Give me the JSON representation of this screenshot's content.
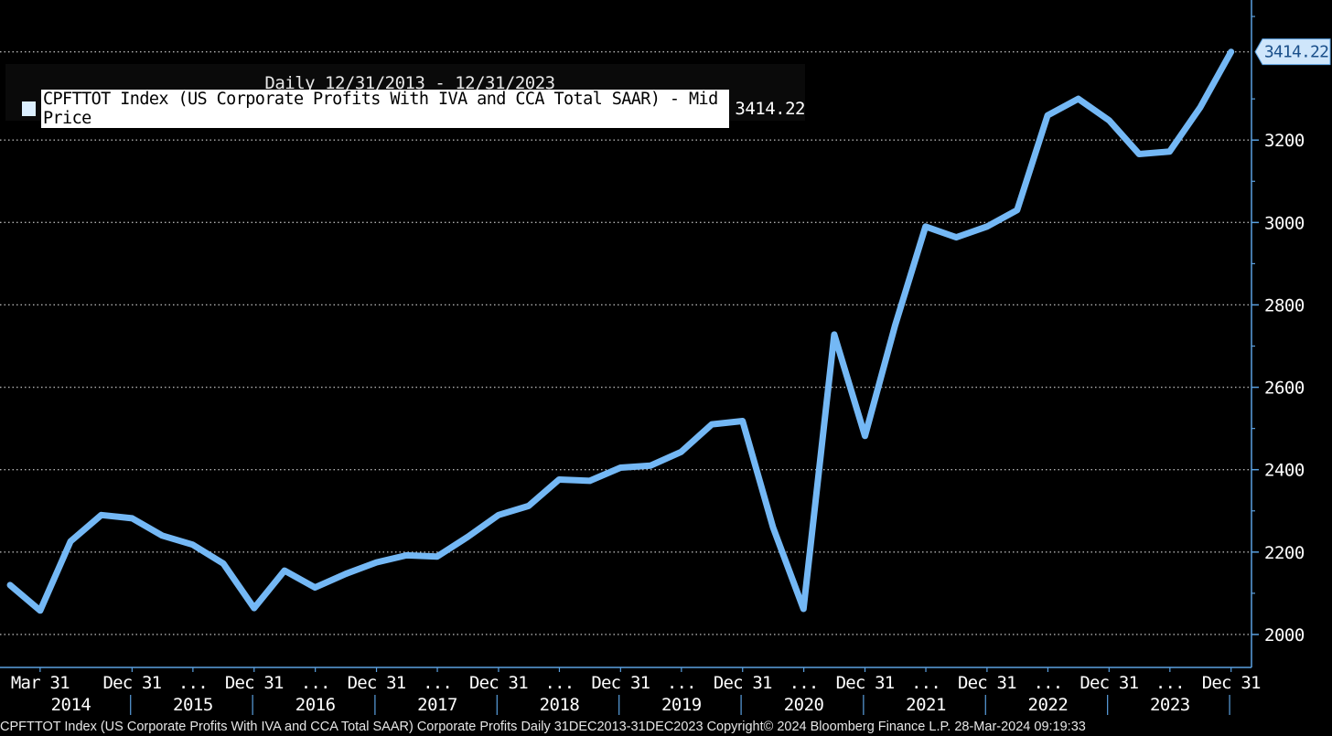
{
  "legend": {
    "range": "Daily 12/31/2013 - 12/31/2023",
    "series_name": "CPFTTOT Index (US Corporate Profits With IVA and CCA Total SAAR) - Mid Price",
    "last_value": "3414.22"
  },
  "footer": "CPFTTOT Index (US Corporate Profits With IVA and CCA Total SAAR) Corporate Profits  Daily 31DEC2013-31DEC2023  Copyright© 2024 Bloomberg Finance L.P.  28-Mar-2024 09:19:33",
  "colors": {
    "line": "#74b8f5",
    "axis": "#5aa0e0",
    "grid": "#b0b0b0",
    "tag_bg": "#cfe6fb",
    "tag_text": "#1a4f8a"
  },
  "chart_data": {
    "type": "line",
    "ylim": [
      1920,
      3540
    ],
    "x_domain": [
      "2013-12-01",
      "2024-03-01"
    ],
    "y_ticks": [
      2000,
      2200,
      2400,
      2600,
      2800,
      3000,
      3200
    ],
    "grid": "horizontal dotted",
    "last_value_label": "3414.22",
    "x_ticks": [
      {
        "date": "2014-03-31",
        "label": "Mar 31"
      },
      {
        "date": "2014-12-31",
        "label": "Dec 31"
      },
      {
        "date": "2015-07-01",
        "label": "..."
      },
      {
        "date": "2015-12-31",
        "label": "Dec 31"
      },
      {
        "date": "2016-07-01",
        "label": "..."
      },
      {
        "date": "2016-12-31",
        "label": "Dec 31"
      },
      {
        "date": "2017-07-01",
        "label": "..."
      },
      {
        "date": "2017-12-31",
        "label": "Dec 31"
      },
      {
        "date": "2018-07-01",
        "label": "..."
      },
      {
        "date": "2018-12-31",
        "label": "Dec 31"
      },
      {
        "date": "2019-07-01",
        "label": "..."
      },
      {
        "date": "2019-12-31",
        "label": "Dec 31"
      },
      {
        "date": "2020-07-01",
        "label": "..."
      },
      {
        "date": "2020-12-31",
        "label": "Dec 31"
      },
      {
        "date": "2021-07-01",
        "label": "..."
      },
      {
        "date": "2021-12-31",
        "label": "Dec 31"
      },
      {
        "date": "2022-07-01",
        "label": "..."
      },
      {
        "date": "2022-12-31",
        "label": "Dec 31"
      },
      {
        "date": "2023-07-01",
        "label": "..."
      },
      {
        "date": "2023-12-31",
        "label": "Dec 31"
      }
    ],
    "year_labels": [
      {
        "date": "2014-07-01",
        "label": "2014"
      },
      {
        "date": "2015-07-01",
        "label": "2015"
      },
      {
        "date": "2016-07-01",
        "label": "2016"
      },
      {
        "date": "2017-07-01",
        "label": "2017"
      },
      {
        "date": "2018-07-01",
        "label": "2018"
      },
      {
        "date": "2019-07-01",
        "label": "2019"
      },
      {
        "date": "2020-07-01",
        "label": "2020"
      },
      {
        "date": "2021-07-01",
        "label": "2021"
      },
      {
        "date": "2022-07-01",
        "label": "2022"
      },
      {
        "date": "2023-07-01",
        "label": "2023"
      }
    ],
    "year_separators": [
      "2015-01-01",
      "2016-01-01",
      "2017-01-01",
      "2018-01-01",
      "2019-01-01",
      "2020-01-01",
      "2021-01-01",
      "2022-01-01",
      "2023-01-01",
      "2024-01-01"
    ],
    "series": [
      {
        "x": [
          "2013-12-31",
          "2014-03-31",
          "2014-06-30",
          "2014-09-30",
          "2014-12-31",
          "2015-03-31",
          "2015-06-30",
          "2015-09-30",
          "2015-12-31",
          "2016-03-31",
          "2016-06-30",
          "2016-09-30",
          "2016-12-31",
          "2017-03-31",
          "2017-06-30",
          "2017-09-30",
          "2017-12-31",
          "2018-03-31",
          "2018-06-30",
          "2018-09-30",
          "2018-12-31",
          "2019-03-31",
          "2019-06-30",
          "2019-09-30",
          "2019-12-31",
          "2020-03-31",
          "2020-06-30",
          "2020-09-30",
          "2020-12-31",
          "2021-03-31",
          "2021-06-30",
          "2021-09-30",
          "2021-12-31",
          "2022-03-31",
          "2022-06-30",
          "2022-09-30",
          "2022-12-31",
          "2023-03-31",
          "2023-06-30",
          "2023-09-30",
          "2023-12-31"
        ],
        "values": [
          2120,
          2058,
          2226,
          2290,
          2282,
          2240,
          2218,
          2172,
          2064,
          2155,
          2114,
          2147,
          2175,
          2192,
          2189,
          2237,
          2290,
          2312,
          2376,
          2373,
          2405,
          2410,
          2443,
          2510,
          2518,
          2260,
          2062,
          2728,
          2482,
          2750,
          2990,
          2964,
          2990,
          3030,
          3260,
          3300,
          3248,
          3166,
          3172,
          3280,
          3414.22
        ]
      }
    ]
  }
}
